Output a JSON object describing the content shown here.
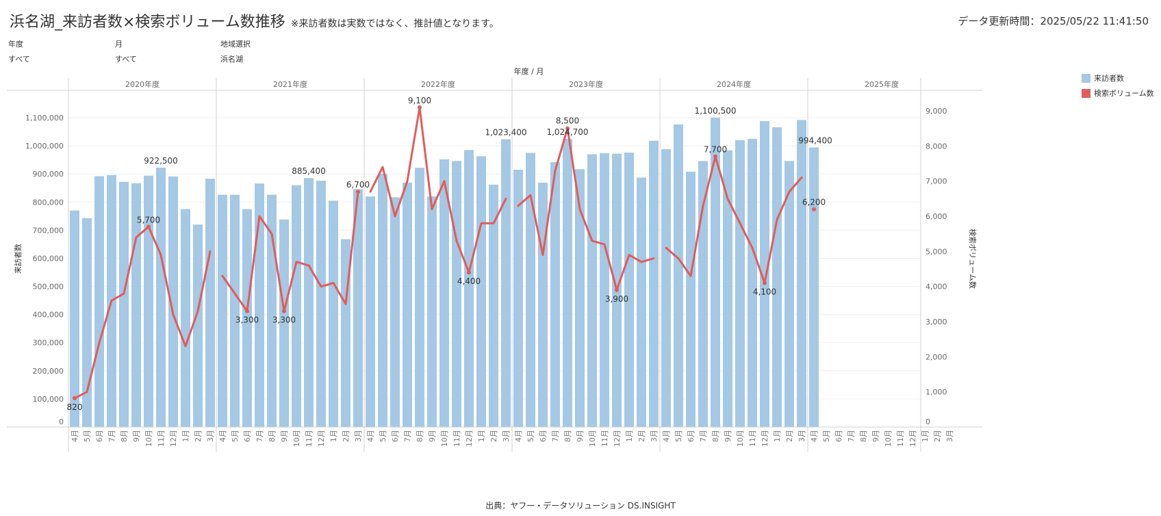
{
  "header": {
    "title": "浜名湖_来訪者数×検索ボリューム数推移",
    "note": "※来訪者数は実数ではなく、推計値となります。",
    "updated_label": "データ更新時間：",
    "updated_value": "2025/05/22 11:41:50"
  },
  "filters": [
    {
      "label": "年度",
      "value": "すべて"
    },
    {
      "label": "月",
      "value": "すべて"
    },
    {
      "label": "地域選択",
      "value": "浜名湖"
    }
  ],
  "legend": [
    {
      "label": "来訪者数",
      "color": "#a5c8e4"
    },
    {
      "label": "検索ボリューム数",
      "color": "#e05c5c"
    }
  ],
  "source": "出典：ヤフー・データソリューション DS.INSIGHT",
  "chart_data": {
    "type": "bar+line",
    "xlabel": "年度 / 月",
    "years": [
      "2020年度",
      "2021年度",
      "2022年度",
      "2023年度",
      "2024年度",
      "2025年度"
    ],
    "months": [
      "4月",
      "5月",
      "6月",
      "7月",
      "8月",
      "9月",
      "10月",
      "11月",
      "12月",
      "1月",
      "2月",
      "3月"
    ],
    "y_left": {
      "label": "来訪者数",
      "ticks": [
        "0",
        "100,000",
        "200,000",
        "300,000",
        "400,000",
        "500,000",
        "600,000",
        "700,000",
        "800,000",
        "900,000",
        "1,000,000",
        "1,100,000"
      ],
      "max": 1100000
    },
    "y_right": {
      "label": "検索ボリューム数",
      "ticks": [
        "0",
        "1,000",
        "2,000",
        "3,000",
        "4,000",
        "5,000",
        "6,000",
        "7,000",
        "8,000",
        "9,000"
      ],
      "max": 9000
    },
    "series": [
      {
        "name": "来訪者数",
        "type": "bar",
        "values": [
          770000,
          743000,
          892000,
          896000,
          872000,
          867000,
          894000,
          922500,
          891000,
          775000,
          720000,
          883000,
          826000,
          826000,
          775000,
          866000,
          826000,
          738000,
          860000,
          885400,
          876000,
          805000,
          668000,
          846000,
          820000,
          900000,
          817000,
          869000,
          922000,
          820000,
          952000,
          946000,
          985000,
          963000,
          862000,
          1023400,
          915000,
          975000,
          869000,
          942000,
          1024700,
          917000,
          970000,
          974000,
          972000,
          976000,
          887000,
          1018000,
          988000,
          1076000,
          908000,
          946000,
          1100500,
          984000,
          1020000,
          1025000,
          1088000,
          1066000,
          946000,
          1092000,
          994400,
          null,
          null,
          null,
          null,
          null,
          null,
          null,
          null,
          null,
          null,
          null
        ]
      },
      {
        "name": "検索ボリューム数",
        "type": "line",
        "values": [
          820,
          1000,
          2400,
          3600,
          3800,
          5400,
          5700,
          4900,
          3200,
          2300,
          3300,
          5000,
          4300,
          3800,
          3300,
          6000,
          5500,
          3300,
          4700,
          4600,
          4000,
          4100,
          3500,
          6700,
          6700,
          7400,
          6000,
          7000,
          9100,
          6200,
          7000,
          5300,
          4400,
          5800,
          5800,
          6500,
          6300,
          6600,
          4900,
          7300,
          8500,
          6200,
          5300,
          5200,
          3900,
          4900,
          4700,
          4800,
          5100,
          4800,
          4300,
          6300,
          7700,
          6500,
          5800,
          5100,
          4100,
          5900,
          6700,
          7100,
          6200,
          null,
          null,
          null,
          null,
          null,
          null,
          null,
          null,
          null,
          null,
          null
        ]
      }
    ],
    "bar_labels": [
      {
        "index": 7,
        "text": "922,500"
      },
      {
        "index": 19,
        "text": "885,400"
      },
      {
        "index": 35,
        "text": "1,023,400"
      },
      {
        "index": 40,
        "text": "1,024,700"
      },
      {
        "index": 52,
        "text": "1,100,500"
      },
      {
        "index": 60,
        "text": "994,400"
      }
    ],
    "line_labels": [
      {
        "index": 0,
        "text": "820",
        "pos": "below"
      },
      {
        "index": 6,
        "text": "5,700",
        "pos": "above"
      },
      {
        "index": 14,
        "text": "3,300",
        "pos": "below"
      },
      {
        "index": 17,
        "text": "3,300",
        "pos": "below"
      },
      {
        "index": 23,
        "text": "6,700",
        "pos": "above"
      },
      {
        "index": 28,
        "text": "9,100",
        "pos": "above"
      },
      {
        "index": 32,
        "text": "4,400",
        "pos": "below"
      },
      {
        "index": 40,
        "text": "8,500",
        "pos": "above2"
      },
      {
        "index": 44,
        "text": "3,900",
        "pos": "below"
      },
      {
        "index": 52,
        "text": "7,700",
        "pos": "above"
      },
      {
        "index": 56,
        "text": "4,100",
        "pos": "below"
      },
      {
        "index": 60,
        "text": "6,200",
        "pos": "above"
      }
    ]
  }
}
